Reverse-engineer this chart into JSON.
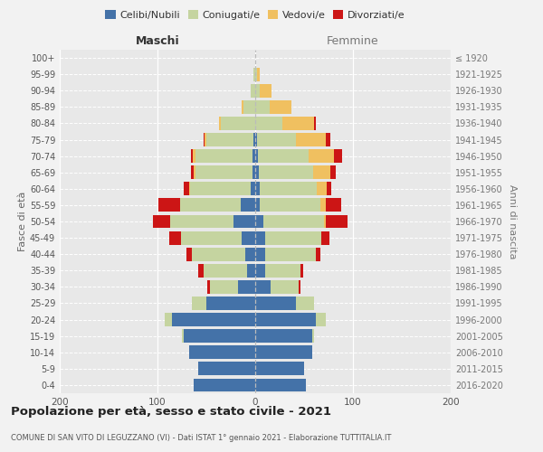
{
  "age_groups": [
    "0-4",
    "5-9",
    "10-14",
    "15-19",
    "20-24",
    "25-29",
    "30-34",
    "35-39",
    "40-44",
    "45-49",
    "50-54",
    "55-59",
    "60-64",
    "65-69",
    "70-74",
    "75-79",
    "80-84",
    "85-89",
    "90-94",
    "95-99",
    "100+"
  ],
  "birth_years": [
    "2016-2020",
    "2011-2015",
    "2006-2010",
    "2001-2005",
    "1996-2000",
    "1991-1995",
    "1986-1990",
    "1981-1985",
    "1976-1980",
    "1971-1975",
    "1966-1970",
    "1961-1965",
    "1956-1960",
    "1951-1955",
    "1946-1950",
    "1941-1945",
    "1936-1940",
    "1931-1935",
    "1926-1930",
    "1921-1925",
    "≤ 1920"
  ],
  "males": {
    "celibi": [
      63,
      58,
      68,
      73,
      85,
      50,
      18,
      8,
      10,
      14,
      22,
      15,
      5,
      3,
      3,
      2,
      0,
      0,
      0,
      0,
      0
    ],
    "coniugati": [
      0,
      0,
      0,
      2,
      8,
      15,
      28,
      45,
      55,
      62,
      65,
      62,
      62,
      58,
      58,
      48,
      35,
      12,
      5,
      2,
      0
    ],
    "vedovi": [
      0,
      0,
      0,
      0,
      0,
      0,
      0,
      0,
      0,
      0,
      0,
      0,
      1,
      2,
      3,
      2,
      2,
      2,
      0,
      0,
      0
    ],
    "divorziati": [
      0,
      0,
      0,
      0,
      0,
      0,
      3,
      5,
      5,
      12,
      18,
      22,
      5,
      3,
      2,
      1,
      0,
      0,
      0,
      0,
      0
    ]
  },
  "females": {
    "nubili": [
      52,
      50,
      58,
      58,
      62,
      42,
      16,
      10,
      10,
      10,
      8,
      5,
      5,
      4,
      3,
      2,
      0,
      0,
      0,
      0,
      0
    ],
    "coniugate": [
      0,
      0,
      0,
      2,
      10,
      18,
      28,
      36,
      52,
      58,
      62,
      62,
      58,
      55,
      52,
      40,
      28,
      15,
      5,
      2,
      0
    ],
    "vedove": [
      0,
      0,
      0,
      0,
      0,
      0,
      0,
      0,
      0,
      0,
      2,
      5,
      10,
      18,
      26,
      30,
      32,
      22,
      12,
      3,
      0
    ],
    "divorziate": [
      0,
      0,
      0,
      0,
      0,
      0,
      2,
      3,
      5,
      8,
      22,
      16,
      5,
      5,
      8,
      5,
      2,
      0,
      0,
      0,
      0
    ]
  },
  "colors": {
    "celibi_nubili": "#4472a8",
    "coniugati": "#c5d4a0",
    "vedovi": "#f0c060",
    "divorziati": "#cc1515"
  },
  "xlim": 200,
  "title": "Popolazione per età, sesso e stato civile - 2021",
  "subtitle": "COMUNE DI SAN VITO DI LEGUZZANO (VI) - Dati ISTAT 1° gennaio 2021 - Elaborazione TUTTITALIA.IT",
  "ylabel_left": "Fasce di età",
  "ylabel_right": "Anni di nascita",
  "xlabel_left": "Maschi",
  "xlabel_right": "Femmine",
  "bg_color": "#f2f2f2",
  "plot_bg": "#e8e8e8"
}
